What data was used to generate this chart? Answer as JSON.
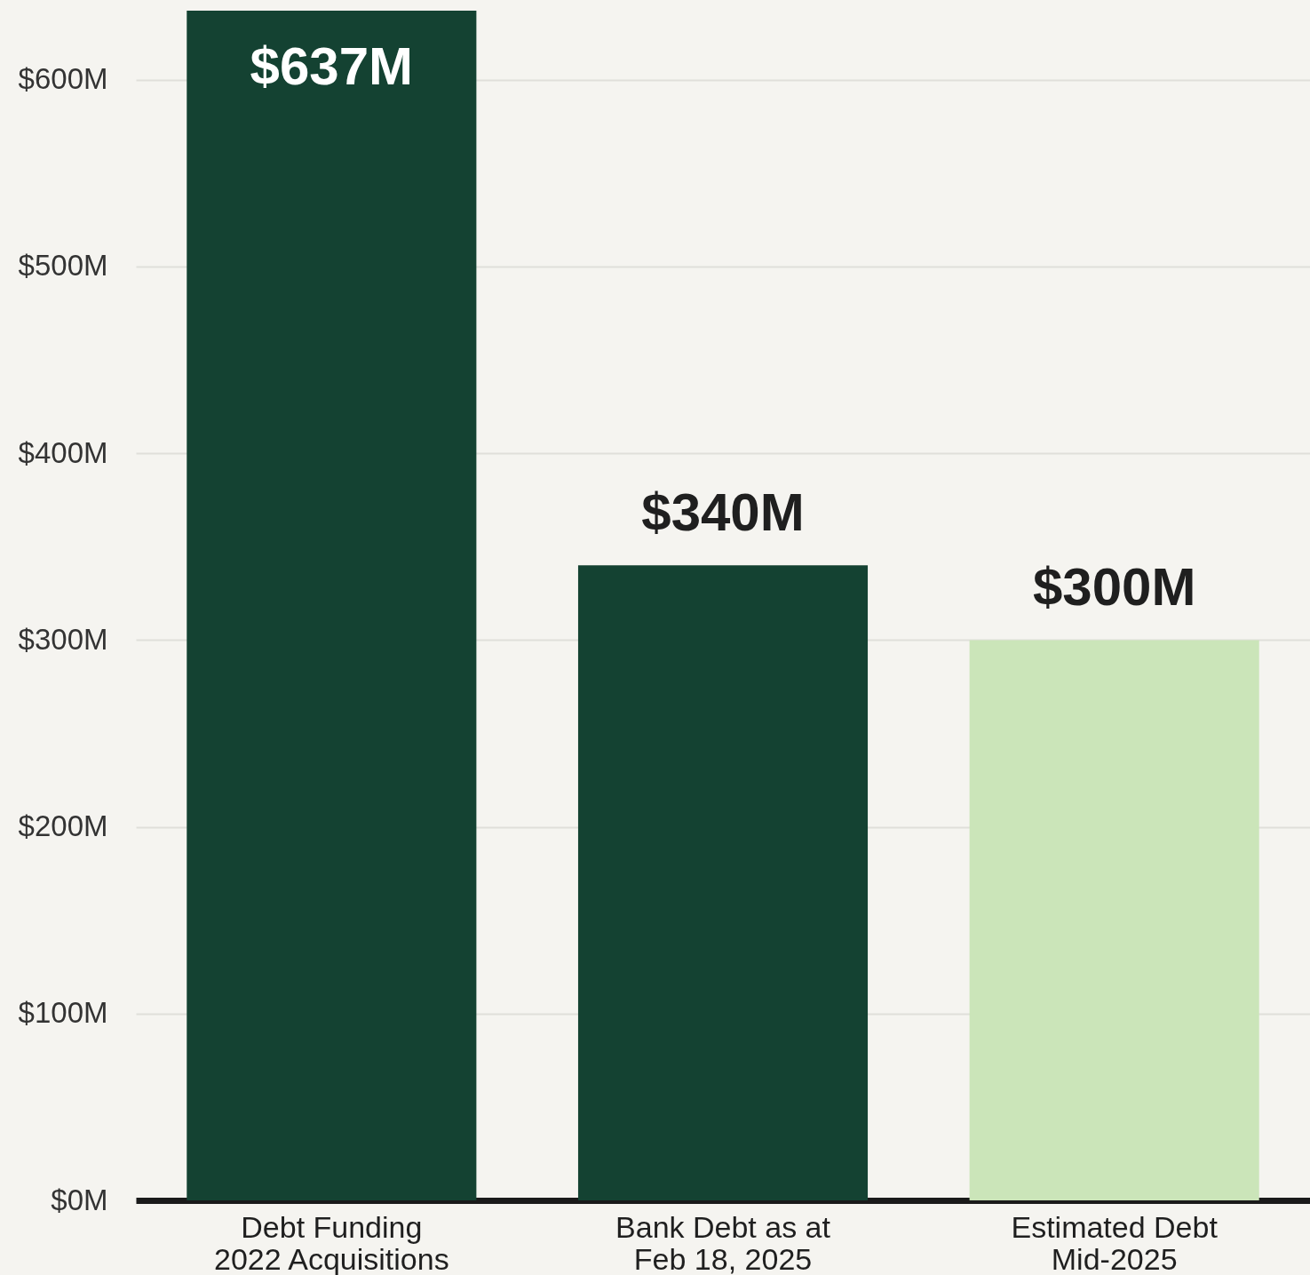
{
  "chart_data": {
    "type": "bar",
    "categories": [
      "Debt Funding\n2022 Acquisitions",
      "Bank Debt as at\nFeb 18, 2025",
      "Estimated Debt\nMid-2025"
    ],
    "values": [
      637,
      340,
      300
    ],
    "colors": [
      "#144232",
      "#144232",
      "#cbe5b9"
    ],
    "value_labels": [
      "$637M",
      "$340M",
      "$300M"
    ],
    "ylim": [
      0,
      637
    ],
    "yticks": [
      {
        "value": 0,
        "label": "$0M"
      },
      {
        "value": 100,
        "label": "$100M"
      },
      {
        "value": 200,
        "label": "$200M"
      },
      {
        "value": 300,
        "label": "$300M"
      },
      {
        "value": 400,
        "label": "$400M"
      },
      {
        "value": 500,
        "label": "$500M"
      },
      {
        "value": 600,
        "label": "$600M"
      }
    ],
    "grid": "y"
  }
}
